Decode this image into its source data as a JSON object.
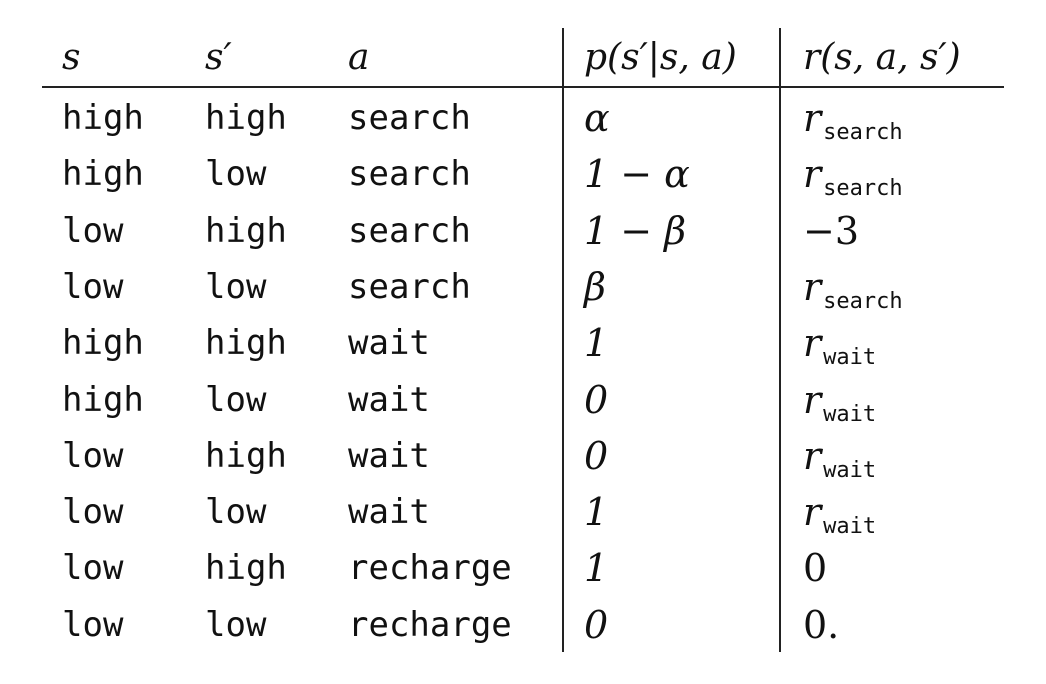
{
  "table": {
    "headers": {
      "s": "s",
      "s_prime": "s′",
      "a": "a",
      "p": "p(s′|s, a)",
      "r": "r(s, a, s′)"
    },
    "rows": [
      {
        "s": "high",
        "s_prime": "high",
        "a": "search",
        "p": "α",
        "r_base": "r",
        "r_sub": "search",
        "r": ""
      },
      {
        "s": "high",
        "s_prime": "low",
        "a": "search",
        "p": "1 − α",
        "r_base": "r",
        "r_sub": "search",
        "r": ""
      },
      {
        "s": "low",
        "s_prime": "high",
        "a": "search",
        "p": "1 − β",
        "r_base": "",
        "r_sub": "",
        "r": "−3"
      },
      {
        "s": "low",
        "s_prime": "low",
        "a": "search",
        "p": "β",
        "r_base": "r",
        "r_sub": "search",
        "r": ""
      },
      {
        "s": "high",
        "s_prime": "high",
        "a": "wait",
        "p": "1",
        "r_base": "r",
        "r_sub": "wait",
        "r": ""
      },
      {
        "s": "high",
        "s_prime": "low",
        "a": "wait",
        "p": "0",
        "r_base": "r",
        "r_sub": "wait",
        "r": ""
      },
      {
        "s": "low",
        "s_prime": "high",
        "a": "wait",
        "p": "0",
        "r_base": "r",
        "r_sub": "wait",
        "r": ""
      },
      {
        "s": "low",
        "s_prime": "low",
        "a": "wait",
        "p": "1",
        "r_base": "r",
        "r_sub": "wait",
        "r": ""
      },
      {
        "s": "low",
        "s_prime": "high",
        "a": "recharge",
        "p": "1",
        "r_base": "",
        "r_sub": "",
        "r": "0"
      },
      {
        "s": "low",
        "s_prime": "low",
        "a": "recharge",
        "p": "0",
        "r_base": "",
        "r_sub": "",
        "r": "0."
      }
    ]
  }
}
